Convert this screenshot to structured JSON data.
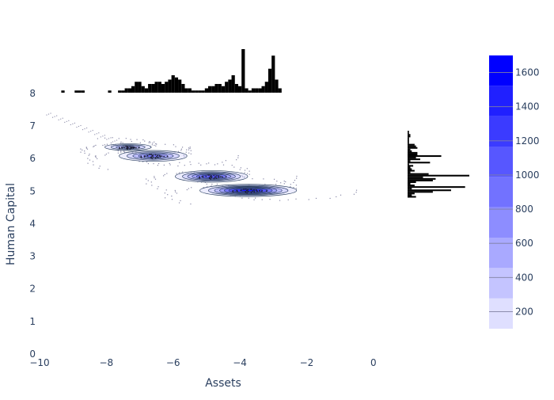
{
  "chart_data": {
    "type": "heatmap",
    "subtype": "2d-density-contour with marginal histograms",
    "xlabel": "Assets",
    "ylabel": "Human Capital",
    "xlim": [
      -10,
      1
    ],
    "ylim": [
      0,
      9.6
    ],
    "x_ticks": [
      {
        "value": -10,
        "label": "−10"
      },
      {
        "value": -8,
        "label": "−8"
      },
      {
        "value": -6,
        "label": "−6"
      },
      {
        "value": -4,
        "label": "−4"
      },
      {
        "value": -2,
        "label": "−2"
      },
      {
        "value": 0,
        "label": "0"
      }
    ],
    "y_ticks": [
      {
        "value": 0,
        "label": "0"
      },
      {
        "value": 1,
        "label": "1"
      },
      {
        "value": 2,
        "label": "2"
      },
      {
        "value": 3,
        "label": "3"
      },
      {
        "value": 4,
        "label": "4"
      },
      {
        "value": 5,
        "label": "5"
      },
      {
        "value": 6,
        "label": "6"
      },
      {
        "value": 7,
        "label": "7"
      },
      {
        "value": 8,
        "label": "8"
      }
    ],
    "density_clusters": [
      {
        "x": -7.35,
        "y": 6.35,
        "sx": 0.4,
        "sy": 0.06,
        "peak": 900
      },
      {
        "x": -6.6,
        "y": 6.08,
        "sx": 0.55,
        "sy": 0.09,
        "peak": 1100
      },
      {
        "x": -4.85,
        "y": 5.45,
        "sx": 0.55,
        "sy": 0.09,
        "peak": 1400
      },
      {
        "x": -3.75,
        "y": 5.02,
        "sx": 0.7,
        "sy": 0.09,
        "peak": 1700
      }
    ],
    "contour_levels": [
      200,
      400,
      600,
      800,
      1000,
      1200,
      1400,
      1600
    ],
    "colorbar": {
      "min": 100,
      "max": 1700,
      "ticks": [
        {
          "value": 200,
          "label": "200"
        },
        {
          "value": 400,
          "label": "400"
        },
        {
          "value": 600,
          "label": "600"
        },
        {
          "value": 800,
          "label": "800"
        },
        {
          "value": 1000,
          "label": "1000"
        },
        {
          "value": 1200,
          "label": "1200"
        },
        {
          "value": 1400,
          "label": "1400"
        },
        {
          "value": 1600,
          "label": "1600"
        }
      ],
      "colors": [
        "#dfdfff",
        "#c4c4ff",
        "#a9a9ff",
        "#8d8dff",
        "#7272ff",
        "#5757ff",
        "#3b3bff",
        "#2020ff",
        "#0000ff"
      ]
    },
    "x_histogram": {
      "bin_start": -9.35,
      "bin_width": 0.1,
      "counts": [
        1,
        0,
        0,
        0,
        1,
        1,
        1,
        0,
        0,
        0,
        0,
        0,
        0,
        0,
        1,
        0,
        0,
        1,
        1,
        2,
        2,
        3,
        5,
        5,
        3,
        2,
        4,
        4,
        5,
        5,
        4,
        5,
        6,
        8,
        7,
        6,
        4,
        2,
        2,
        1,
        1,
        1,
        1,
        2,
        3,
        3,
        4,
        4,
        3,
        5,
        6,
        8,
        4,
        3,
        20,
        2,
        1,
        2,
        2,
        2,
        3,
        5,
        11,
        17,
        6,
        2
      ]
    },
    "y_histogram": {
      "bin_start": 4.8,
      "bin_width": 0.05,
      "counts": [
        6,
        3,
        5,
        18,
        31,
        3,
        41,
        5,
        2,
        6,
        18,
        20,
        11,
        44,
        15,
        2,
        5,
        3,
        2,
        4,
        1,
        16,
        2,
        9,
        6,
        24,
        7,
        7,
        3,
        2,
        7,
        6,
        5,
        1,
        1,
        1,
        1,
        2,
        2,
        1,
        1
      ]
    }
  }
}
